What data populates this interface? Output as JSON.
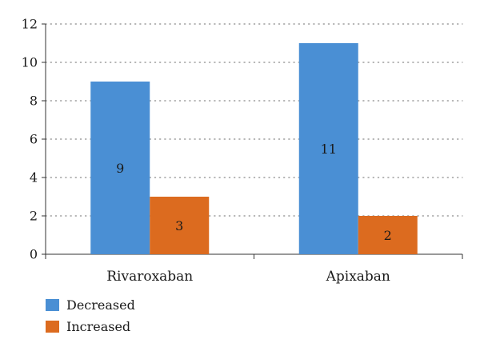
{
  "chart_data": {
    "type": "bar",
    "title": "",
    "xlabel": "",
    "ylabel": "",
    "categories": [
      "Rivaroxaban",
      "Apixaban"
    ],
    "series": [
      {
        "name": "Decreased",
        "values": [
          9,
          11
        ],
        "color": "#4a8fd4"
      },
      {
        "name": "Increased",
        "values": [
          3,
          2
        ],
        "color": "#dc6b1f"
      }
    ],
    "ylim": [
      0,
      12
    ],
    "yticks": [
      0,
      2,
      4,
      6,
      8,
      10,
      12
    ],
    "grid": true,
    "legend_position": "bottom-left"
  }
}
